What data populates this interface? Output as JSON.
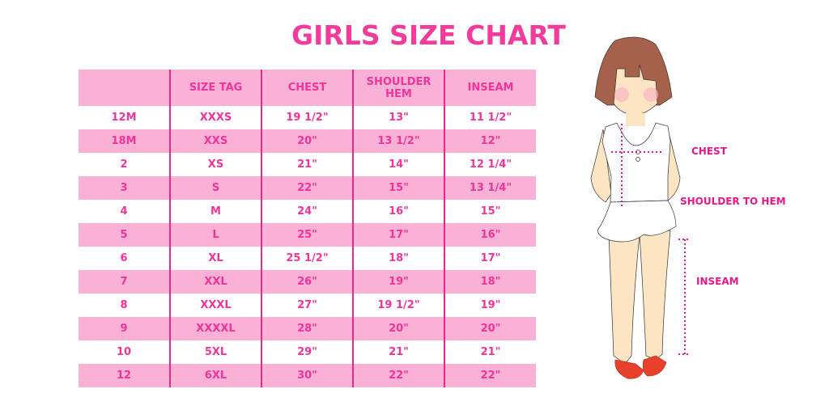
{
  "title": "GIRLS SIZE CHART",
  "table": {
    "headers": [
      "",
      "SIZE TAG",
      "CHEST",
      "SHOULDER HEM",
      "INSEAM"
    ],
    "rows": [
      [
        "12M",
        "XXXS",
        "19 1/2\"",
        "13\"",
        "11 1/2\""
      ],
      [
        "18M",
        "XXS",
        "20\"",
        "13 1/2\"",
        "12\""
      ],
      [
        "2",
        "XS",
        "21\"",
        "14\"",
        "12 1/4\""
      ],
      [
        "3",
        "S",
        "22\"",
        "15\"",
        "13 1/4\""
      ],
      [
        "4",
        "M",
        "24\"",
        "16\"",
        "15\""
      ],
      [
        "5",
        "L",
        "25\"",
        "17\"",
        "16\""
      ],
      [
        "6",
        "XL",
        "25 1/2\"",
        "18\"",
        "17\""
      ],
      [
        "7",
        "XXL",
        "26\"",
        "19\"",
        "18\""
      ],
      [
        "8",
        "XXXL",
        "27\"",
        "19 1/2\"",
        "19\""
      ],
      [
        "9",
        "XXXXL",
        "28\"",
        "20\"",
        "20\""
      ],
      [
        "10",
        "5XL",
        "29\"",
        "21\"",
        "21\""
      ],
      [
        "12",
        "6XL",
        "30\"",
        "22\"",
        "22\""
      ]
    ]
  },
  "illustration": {
    "labels": {
      "chest": "CHEST",
      "shoulder_to_hem": "SHOULDER TO HEM",
      "inseam": "INSEAM"
    }
  },
  "colors": {
    "accent": "#f23c9c",
    "row_pink": "#fbb0d5",
    "divider": "#e8288f"
  }
}
